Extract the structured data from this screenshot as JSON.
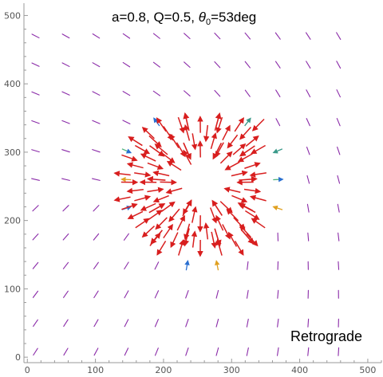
{
  "chart_data": {
    "type": "vector_field",
    "title": "a=0.8, Q=0.5, θ0=53deg",
    "title_parts": {
      "main": "a=0.8, Q=0.5, ",
      "theta": "θ",
      "sub": "0",
      "rest": "=53deg"
    },
    "annotation": "Retrograde",
    "xlabel": "",
    "ylabel": "",
    "xlim": [
      -5,
      520
    ],
    "ylim": [
      -8,
      518
    ],
    "x_ticks": [
      0,
      100,
      200,
      300,
      400,
      500
    ],
    "y_ticks": [
      0,
      100,
      200,
      300,
      400,
      500
    ],
    "x_tick_labels": [
      "0",
      "100",
      "200",
      "300",
      "400",
      "500"
    ],
    "y_tick_labels": [
      "0",
      "100",
      "200",
      "300",
      "400",
      "500"
    ],
    "minor_tick_step": 20,
    "grid": false,
    "field": {
      "grid_x_start": 12,
      "grid_x_step": 44.5,
      "grid_x_count": 11,
      "grid_y_start": 8,
      "grid_y_step": 42,
      "grid_y_count": 12,
      "center": [
        255,
        255
      ],
      "hole_radius": 50,
      "outer_radius": 130,
      "far_color": "#8a2aa8",
      "mid_colors": [
        "#2a6fd1",
        "#3a9a8a",
        "#4ab07a",
        "#e0a020"
      ],
      "near_color": "#d81e1e"
    },
    "colors": {
      "strong": "#d81e1e",
      "weak": "#8a2aa8",
      "teal": "#3a9a8a",
      "blue": "#2a6fd1",
      "orange": "#e0a020"
    }
  }
}
